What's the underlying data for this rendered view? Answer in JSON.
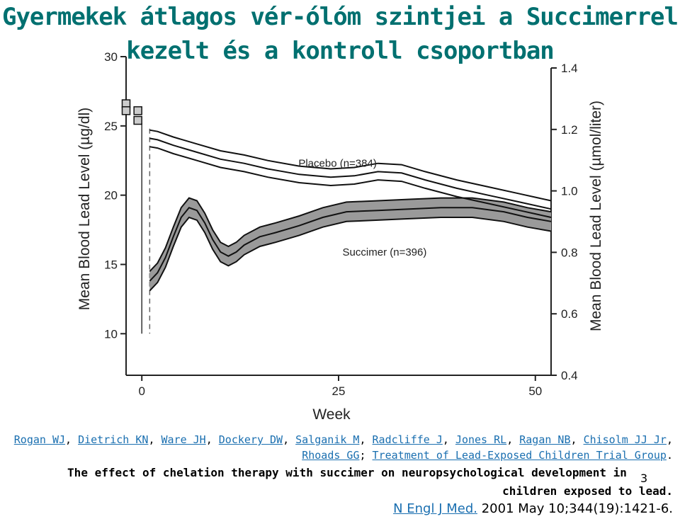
{
  "title": {
    "line1": "Gyermekek átlagos vér-ólóm szintjei a Succimerrel",
    "line2": "kezelt és a kontroll csoportban"
  },
  "chart_data": {
    "type": "line",
    "xlabel": "Week",
    "ylabel_left": "Mean Blood Lead Level (µg/dl)",
    "ylabel_right": "Mean Blood Lead Level (µmol/liter)",
    "xlim": [
      -2,
      52
    ],
    "ylim_left": [
      7,
      30
    ],
    "ylim_right": [
      0.4,
      1.4
    ],
    "x_ticks": [
      0,
      25,
      50
    ],
    "y_ticks_left": [
      10,
      15,
      20,
      25,
      30
    ],
    "y_ticks_right": [
      0.4,
      0.6,
      0.8,
      1.0,
      1.2,
      1.4
    ],
    "baseline_points": [
      {
        "x": -2,
        "y": 26.6
      },
      {
        "x": -2,
        "y": 26.1
      },
      {
        "x": -0.5,
        "y": 26.1
      },
      {
        "x": -0.5,
        "y": 25.4
      }
    ],
    "series": [
      {
        "name": "Placebo (n=384)",
        "band": false,
        "x": [
          1,
          2,
          4,
          7,
          10,
          13,
          16,
          20,
          24,
          27,
          30,
          33,
          36,
          40,
          44,
          48,
          52
        ],
        "mean": [
          24.1,
          24.0,
          23.6,
          23.1,
          22.6,
          22.3,
          21.9,
          21.5,
          21.3,
          21.4,
          21.7,
          21.6,
          21.1,
          20.5,
          20.0,
          19.5,
          19.0
        ],
        "lower": [
          23.5,
          23.4,
          23.0,
          22.5,
          22.0,
          21.7,
          21.3,
          20.9,
          20.7,
          20.8,
          21.1,
          21.0,
          20.5,
          19.9,
          19.4,
          18.9,
          18.4
        ],
        "upper": [
          24.7,
          24.6,
          24.2,
          23.7,
          23.2,
          22.9,
          22.5,
          22.1,
          21.9,
          22.0,
          22.3,
          22.2,
          21.7,
          21.1,
          20.6,
          20.1,
          19.6
        ]
      },
      {
        "name": "Succimer (n=396)",
        "band": true,
        "x": [
          1,
          2,
          3,
          4,
          5,
          6,
          7,
          8,
          9,
          10,
          11,
          12,
          13,
          15,
          17,
          20,
          23,
          26,
          30,
          34,
          38,
          42,
          46,
          49,
          52
        ],
        "mean": [
          13.8,
          14.4,
          15.5,
          17.0,
          18.4,
          19.1,
          18.9,
          18.0,
          16.8,
          15.9,
          15.6,
          15.9,
          16.4,
          17.0,
          17.3,
          17.8,
          18.4,
          18.8,
          18.9,
          19.0,
          19.1,
          19.1,
          18.8,
          18.4,
          18.1
        ],
        "lower": [
          13.1,
          13.7,
          14.8,
          16.3,
          17.7,
          18.4,
          18.2,
          17.3,
          16.1,
          15.2,
          14.9,
          15.2,
          15.7,
          16.3,
          16.6,
          17.1,
          17.7,
          18.1,
          18.2,
          18.3,
          18.4,
          18.4,
          18.1,
          17.7,
          17.4
        ],
        "upper": [
          14.5,
          15.1,
          16.2,
          17.7,
          19.1,
          19.8,
          19.6,
          18.7,
          17.5,
          16.6,
          16.3,
          16.6,
          17.1,
          17.7,
          18.0,
          18.5,
          19.1,
          19.5,
          19.6,
          19.7,
          19.8,
          19.8,
          19.5,
          19.1,
          18.8
        ]
      }
    ],
    "annotations": [
      "Placebo (n=384)",
      "Succimer (n=396)"
    ],
    "colors": {
      "line": "#111111",
      "band": "#9a9a9a",
      "axis": "#222222"
    }
  },
  "reference": {
    "authors": [
      "Rogan WJ",
      "Dietrich KN",
      "Ware JH",
      "Dockery DW",
      "Salganik M",
      "Radcliffe J",
      "Jones RL",
      "Ragan NB",
      "Chisolm JJ Jr",
      "Rhoads GG"
    ],
    "group": "Treatment of Lead-Exposed Children Trial Group",
    "article_line1": "The effect of chelation therapy with succimer on neuropsychological development in",
    "article_line2": "children exposed to lead.",
    "journal": "N Engl J Med.",
    "citation": "2001 May 10;344(19):1421-6."
  },
  "slide_number": "3",
  "colors": {
    "title": "#007070",
    "link": "#1a6fb0"
  }
}
